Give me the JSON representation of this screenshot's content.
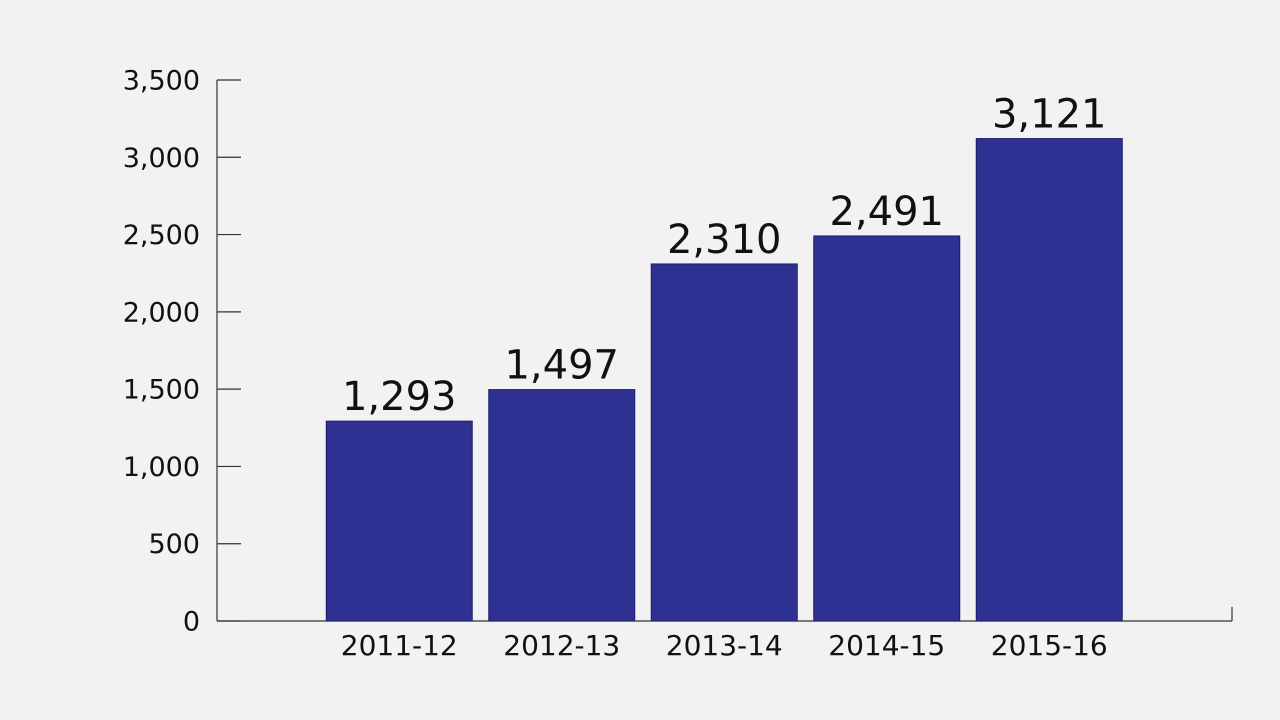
{
  "chart_data": {
    "type": "bar",
    "categories": [
      "2011-12",
      "2012-13",
      "2013-14",
      "2014-15",
      "2015-16"
    ],
    "values": [
      1293,
      1497,
      2310,
      2491,
      3121
    ],
    "value_labels": [
      "1,293",
      "1,497",
      "2,310",
      "2,491",
      "3,121"
    ],
    "color": "#2e3192",
    "ylim": [
      0,
      3500
    ],
    "yticks": [
      0,
      500,
      {
        "value": 1000,
        "label": "1,000"
      },
      {
        "value": 1500,
        "label": "1,500"
      },
      {
        "value": 2000,
        "label": "2,000"
      },
      {
        "value": 2500,
        "label": "2,500"
      },
      {
        "value": 3000,
        "label": "3,000"
      },
      {
        "value": 3500,
        "label": "3,500"
      }
    ]
  }
}
